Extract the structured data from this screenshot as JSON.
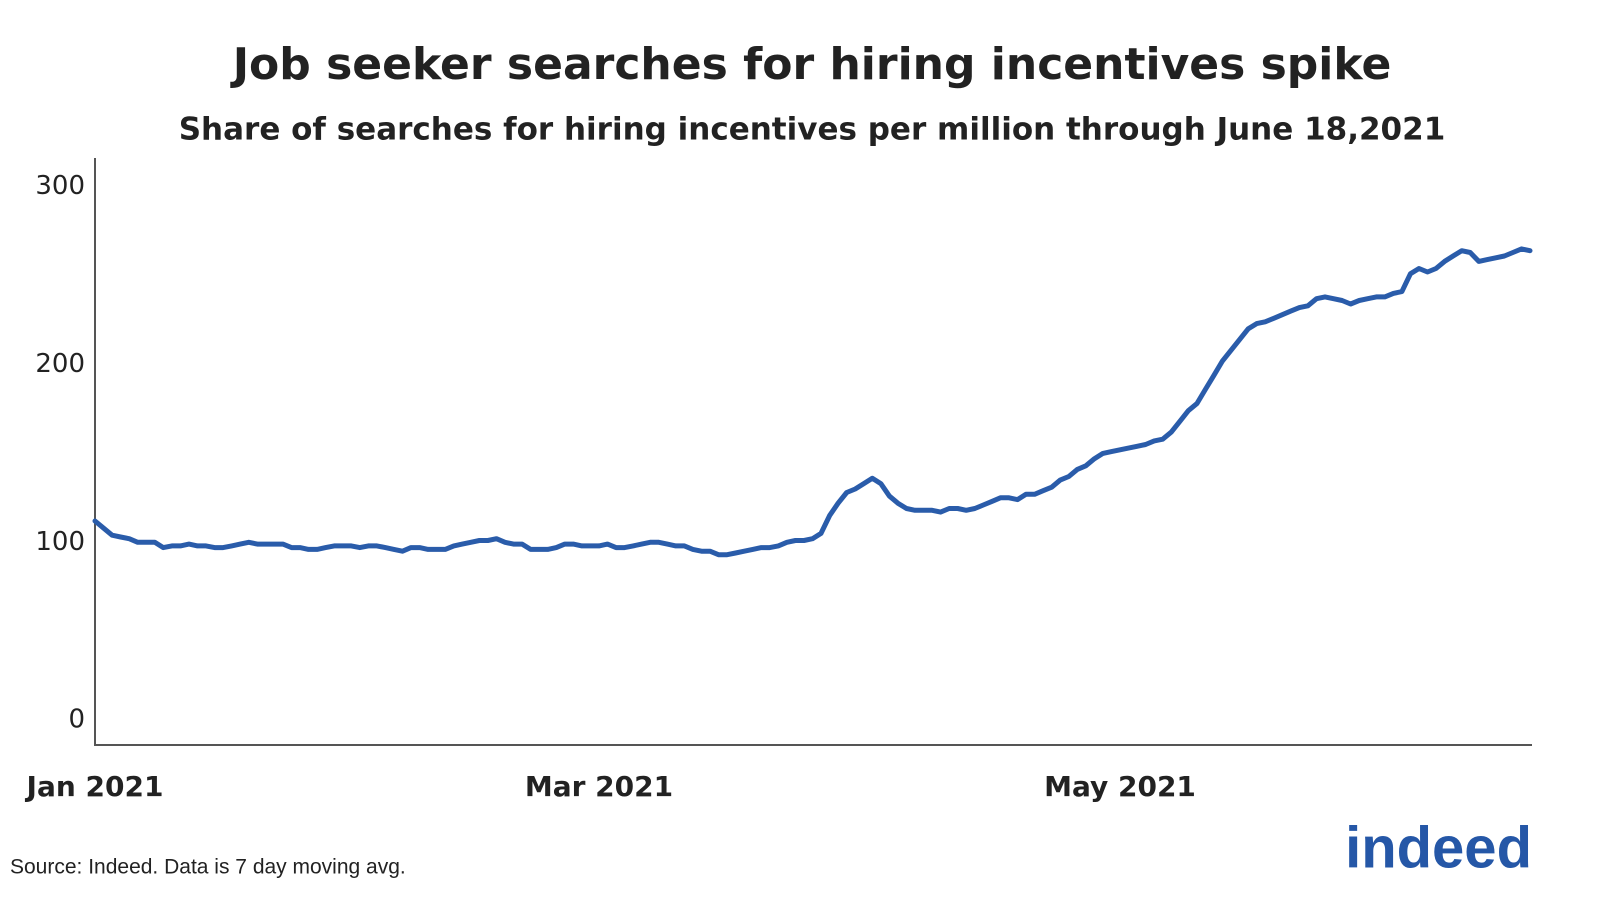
{
  "chart_data": {
    "type": "line",
    "title": "Job seeker searches for hiring incentives spike",
    "subtitle": "Share of searches for hiring incentives per million through June 18,2021",
    "categories": [
      "Jan 2021",
      null,
      null,
      null,
      null,
      null,
      null,
      null,
      null,
      null,
      null,
      null,
      null,
      null,
      null,
      null,
      null,
      null,
      null,
      null,
      null,
      null,
      null,
      null,
      null,
      null,
      null,
      null,
      null,
      null,
      null,
      null,
      null,
      null,
      null,
      null,
      null,
      null,
      null,
      null,
      null,
      null,
      null,
      null,
      null,
      null,
      null,
      null,
      null,
      null,
      null,
      null,
      null,
      null,
      null,
      null,
      null,
      null,
      null,
      "Mar 2021",
      null,
      null,
      null,
      null,
      null,
      null,
      null,
      null,
      null,
      null,
      null,
      null,
      null,
      null,
      null,
      null,
      null,
      null,
      null,
      null,
      null,
      null,
      null,
      null,
      null,
      null,
      null,
      null,
      null,
      null,
      null,
      null,
      null,
      null,
      null,
      null,
      null,
      null,
      null,
      null,
      null,
      null,
      null,
      null,
      null,
      null,
      null,
      null,
      null,
      null,
      null,
      null,
      null,
      null,
      null,
      null,
      null,
      null,
      null,
      null,
      "May 2021",
      null,
      null,
      null,
      null,
      null,
      null,
      null,
      null,
      null,
      null,
      null,
      null,
      null,
      null,
      null,
      null,
      null,
      null,
      null,
      null,
      null,
      null,
      null,
      null,
      null,
      null,
      null,
      null,
      null,
      null,
      null,
      null,
      null,
      null,
      null,
      null,
      null,
      null,
      null,
      null,
      null,
      null,
      null,
      null,
      null,
      null,
      null,
      null
    ],
    "series": [
      {
        "name": "Share of searches",
        "color": "#2a5caa",
        "values": [
          112,
          108,
          104,
          103,
          102,
          100,
          100,
          100,
          97,
          98,
          98,
          99,
          98,
          98,
          97,
          97,
          98,
          99,
          100,
          99,
          99,
          99,
          99,
          97,
          97,
          96,
          96,
          97,
          98,
          98,
          98,
          97,
          98,
          98,
          97,
          96,
          95,
          97,
          97,
          96,
          96,
          96,
          98,
          99,
          100,
          101,
          101,
          102,
          100,
          99,
          99,
          96,
          96,
          96,
          97,
          99,
          99,
          98,
          98,
          98,
          99,
          97,
          97,
          98,
          99,
          100,
          100,
          99,
          98,
          98,
          96,
          95,
          95,
          93,
          93,
          94,
          95,
          96,
          97,
          97,
          98,
          100,
          101,
          101,
          102,
          105,
          115,
          122,
          128,
          130,
          133,
          136,
          133,
          126,
          122,
          119,
          118,
          118,
          118,
          117,
          119,
          119,
          118,
          119,
          121,
          123,
          125,
          125,
          124,
          127,
          127,
          129,
          131,
          135,
          137,
          141,
          143,
          147,
          150,
          151,
          152,
          153,
          154,
          155,
          157,
          158,
          162,
          168,
          174,
          178,
          186,
          194,
          202,
          208,
          214,
          220,
          223,
          224,
          226,
          228,
          230,
          232,
          233,
          237,
          238,
          237,
          236,
          234,
          236,
          237,
          238,
          238,
          240,
          241,
          251,
          254,
          252,
          254,
          258,
          261,
          264,
          263,
          258,
          259,
          260,
          261,
          263,
          265,
          264
        ]
      }
    ],
    "ylim": [
      -14,
      315
    ],
    "yticks": [
      0,
      100,
      200,
      300
    ],
    "grid": false
  },
  "source": "Source: Indeed. Data is 7 day moving avg.",
  "logo": "indeed"
}
